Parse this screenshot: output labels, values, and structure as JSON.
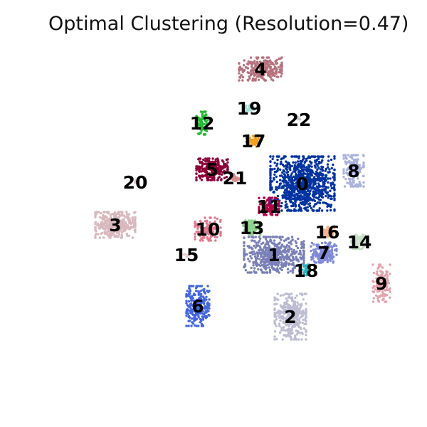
{
  "chart_data": {
    "type": "scatter",
    "title": "Optimal Clustering (Resolution=0.47)",
    "xlabel": "",
    "ylabel": "",
    "grid": false,
    "axes_visible": false,
    "clusters": [
      {
        "id": "0",
        "label": "0",
        "color": "#0033a0",
        "center": [
          425,
          258
        ],
        "spread": [
          45,
          38
        ],
        "points": 900
      },
      {
        "id": "1",
        "label": "1",
        "color": "#7a80b8",
        "center": [
          385,
          358
        ],
        "spread": [
          42,
          25
        ],
        "points": 520
      },
      {
        "id": "2",
        "label": "2",
        "color": "#bcbdd4",
        "center": [
          408,
          445
        ],
        "spread": [
          22,
          32
        ],
        "points": 320
      },
      {
        "id": "3",
        "label": "3",
        "color": "#d9b8bd",
        "center": [
          162,
          316
        ],
        "spread": [
          28,
          18
        ],
        "points": 330
      },
      {
        "id": "4",
        "label": "4",
        "color": "#b5727d",
        "center": [
          366,
          97
        ],
        "spread": [
          30,
          16
        ],
        "points": 260
      },
      {
        "id": "5",
        "label": "5",
        "color": "#8c0038",
        "center": [
          298,
          238
        ],
        "spread": [
          22,
          15
        ],
        "points": 240
      },
      {
        "id": "6",
        "label": "6",
        "color": "#4466e0",
        "center": [
          278,
          430
        ],
        "spread": [
          16,
          28
        ],
        "points": 250
      },
      {
        "id": "7",
        "label": "7",
        "color": "#7f8ad9",
        "center": [
          455,
          355
        ],
        "spread": [
          18,
          14
        ],
        "points": 180
      },
      {
        "id": "8",
        "label": "8",
        "color": "#aab3df",
        "center": [
          497,
          240
        ],
        "spread": [
          14,
          22
        ],
        "points": 170
      },
      {
        "id": "9",
        "label": "9",
        "color": "#e3a3ad",
        "center": [
          536,
          398
        ],
        "spread": [
          12,
          26
        ],
        "points": 140
      },
      {
        "id": "10",
        "label": "10",
        "color": "#e07a8e",
        "center": [
          292,
          322
        ],
        "spread": [
          18,
          16
        ],
        "points": 150
      },
      {
        "id": "11",
        "label": "11",
        "color": "#b00045",
        "center": [
          378,
          290
        ],
        "spread": [
          14,
          12
        ],
        "points": 120
      },
      {
        "id": "12",
        "label": "12",
        "color": "#22bb33",
        "center": [
          284,
          173
        ],
        "spread": [
          8,
          16
        ],
        "points": 80
      },
      {
        "id": "13",
        "label": "13",
        "color": "#8fd18f",
        "center": [
          354,
          320
        ],
        "spread": [
          12,
          10
        ],
        "points": 100
      },
      {
        "id": "14",
        "label": "14",
        "color": "#c9e0c8",
        "center": [
          505,
          340
        ],
        "spread": [
          12,
          10
        ],
        "points": 90
      },
      {
        "id": "15",
        "label": "15",
        "color": "#e8c8c8",
        "center": [
          262,
          358
        ],
        "spread": [
          4,
          4
        ],
        "points": 8
      },
      {
        "id": "16",
        "label": "16",
        "color": "#f2b38c",
        "center": [
          460,
          326
        ],
        "spread": [
          10,
          7
        ],
        "points": 60
      },
      {
        "id": "17",
        "label": "17",
        "color": "#f0a020",
        "center": [
          356,
          198
        ],
        "spread": [
          10,
          8
        ],
        "points": 50
      },
      {
        "id": "18",
        "label": "18",
        "color": "#22b5c0",
        "center": [
          430,
          380
        ],
        "spread": [
          5,
          8
        ],
        "points": 30
      },
      {
        "id": "19",
        "label": "19",
        "color": "#a8e0d8",
        "center": [
          350,
          152
        ],
        "spread": [
          7,
          5
        ],
        "points": 30
      },
      {
        "id": "20",
        "label": "20",
        "color": "#d8c0c0",
        "center": [
          190,
          256
        ],
        "spread": [
          3,
          3
        ],
        "points": 4
      },
      {
        "id": "21",
        "label": "21",
        "color": "#d98a8a",
        "center": [
          330,
          250
        ],
        "spread": [
          6,
          5
        ],
        "points": 25
      },
      {
        "id": "22",
        "label": "22",
        "color": "#c9c9c9",
        "center": [
          420,
          168
        ],
        "spread": [
          3,
          3
        ],
        "points": 4
      }
    ]
  }
}
